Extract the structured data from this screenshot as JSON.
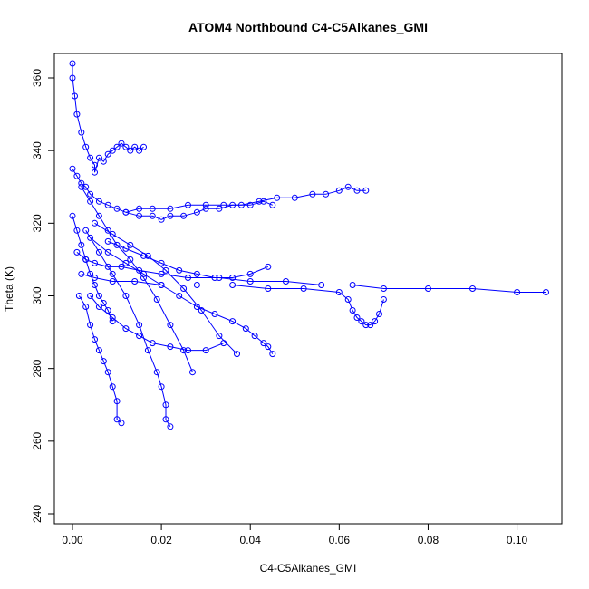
{
  "chart_data": {
    "type": "scatter",
    "title": "ATOM4 Northbound C4-C5Alkanes_GMI",
    "xlabel": "C4-C5Alkanes_GMI",
    "ylabel": "Theta (K)",
    "xlim": [
      0.0,
      0.106
    ],
    "ylim": [
      240,
      365
    ],
    "x_ticks": [
      0.0,
      0.02,
      0.04,
      0.06,
      0.08,
      0.1
    ],
    "x_tick_labels": [
      "0.00",
      "0.02",
      "0.04",
      "0.06",
      "0.08",
      "0.10"
    ],
    "y_ticks": [
      240,
      260,
      280,
      300,
      320,
      340,
      360
    ],
    "y_tick_labels": [
      "240",
      "260",
      "280",
      "300",
      "320",
      "340",
      "360"
    ],
    "grid": false,
    "legend": "none",
    "color": "#0000ff",
    "marker": "open-circle",
    "connected": true,
    "series": [
      {
        "x": [
          0.0,
          0.0,
          0.0005,
          0.001,
          0.002,
          0.003,
          0.004,
          0.005,
          0.005,
          0.006,
          0.007,
          0.008,
          0.009,
          0.01,
          0.011,
          0.012,
          0.013,
          0.014,
          0.015,
          0.016
        ],
        "y": [
          364,
          360,
          355,
          350,
          345,
          341,
          338,
          336,
          334,
          338,
          337,
          339,
          340,
          341,
          342,
          341,
          340,
          341,
          340,
          341
        ]
      },
      {
        "x": [
          0.0,
          0.001,
          0.002,
          0.003,
          0.004,
          0.006,
          0.008,
          0.01,
          0.012,
          0.015,
          0.018,
          0.02,
          0.022,
          0.025,
          0.028,
          0.03,
          0.033,
          0.036,
          0.04,
          0.043,
          0.045
        ],
        "y": [
          335,
          333,
          331,
          330,
          328,
          326,
          325,
          324,
          323,
          322,
          322,
          321,
          322,
          322,
          323,
          324,
          324,
          325,
          325,
          326,
          325
        ]
      },
      {
        "x": [
          0.012,
          0.015,
          0.018,
          0.022,
          0.026,
          0.03,
          0.034,
          0.038,
          0.042,
          0.046,
          0.05,
          0.054,
          0.057,
          0.06,
          0.062,
          0.064,
          0.066
        ],
        "y": [
          323,
          324,
          324,
          324,
          325,
          325,
          325,
          325,
          326,
          327,
          327,
          328,
          328,
          329,
          330,
          329,
          329
        ]
      },
      {
        "x": [
          0.001,
          0.003,
          0.005,
          0.008,
          0.011,
          0.015,
          0.02,
          0.026,
          0.033,
          0.04,
          0.048,
          0.056,
          0.063,
          0.07,
          0.08,
          0.09,
          0.1,
          0.1065
        ],
        "y": [
          312,
          310,
          309,
          308,
          308,
          307,
          306,
          305,
          305,
          304,
          304,
          303,
          303,
          302,
          302,
          302,
          301,
          301
        ]
      },
      {
        "x": [
          0.002,
          0.005,
          0.009,
          0.014,
          0.02,
          0.028,
          0.036,
          0.044,
          0.052,
          0.06,
          0.062,
          0.063,
          0.064,
          0.065,
          0.066,
          0.067,
          0.068,
          0.069,
          0.07
        ],
        "y": [
          306,
          305,
          304,
          304,
          303,
          303,
          303,
          302,
          302,
          301,
          299,
          296,
          294,
          293,
          292,
          292,
          293,
          295,
          299
        ]
      },
      {
        "x": [
          0.0015,
          0.003,
          0.004,
          0.005,
          0.006,
          0.007,
          0.008,
          0.009,
          0.01,
          0.01,
          0.011
        ],
        "y": [
          300,
          297,
          292,
          288,
          285,
          282,
          279,
          275,
          271,
          266,
          265
        ]
      },
      {
        "x": [
          0.003,
          0.006,
          0.009,
          0.012,
          0.015,
          0.017,
          0.019,
          0.02,
          0.021,
          0.021,
          0.022
        ],
        "y": [
          318,
          312,
          306,
          300,
          292,
          285,
          279,
          275,
          270,
          266,
          264
        ]
      },
      {
        "x": [
          0.004,
          0.008,
          0.012,
          0.016,
          0.02,
          0.024,
          0.028,
          0.032,
          0.036,
          0.039,
          0.041,
          0.043,
          0.044,
          0.045
        ],
        "y": [
          316,
          312,
          309,
          306,
          303,
          300,
          297,
          295,
          293,
          291,
          289,
          287,
          286,
          284
        ]
      },
      {
        "x": [
          0.005,
          0.009,
          0.013,
          0.017,
          0.021,
          0.025,
          0.029,
          0.033,
          0.037
        ],
        "y": [
          320,
          317,
          314,
          311,
          307,
          302,
          296,
          289,
          284
        ]
      },
      {
        "x": [
          0.002,
          0.004,
          0.006,
          0.008,
          0.01,
          0.013,
          0.016,
          0.019,
          0.022,
          0.025,
          0.027
        ],
        "y": [
          330,
          326,
          322,
          318,
          314,
          310,
          305,
          299,
          292,
          285,
          279
        ]
      },
      {
        "x": [
          0.0,
          0.001,
          0.002,
          0.003,
          0.004,
          0.005,
          0.006,
          0.007,
          0.008,
          0.009
        ],
        "y": [
          322,
          318,
          314,
          310,
          306,
          303,
          300,
          298,
          296,
          293
        ]
      },
      {
        "x": [
          0.004,
          0.006,
          0.009,
          0.012,
          0.015,
          0.018,
          0.022,
          0.026,
          0.03,
          0.034
        ],
        "y": [
          300,
          297,
          294,
          291,
          289,
          287,
          286,
          285,
          285,
          287
        ]
      },
      {
        "x": [
          0.008,
          0.012,
          0.016,
          0.02,
          0.024,
          0.028,
          0.032,
          0.036,
          0.04,
          0.044
        ],
        "y": [
          315,
          313,
          311,
          309,
          307,
          306,
          305,
          305,
          306,
          308
        ]
      }
    ]
  }
}
